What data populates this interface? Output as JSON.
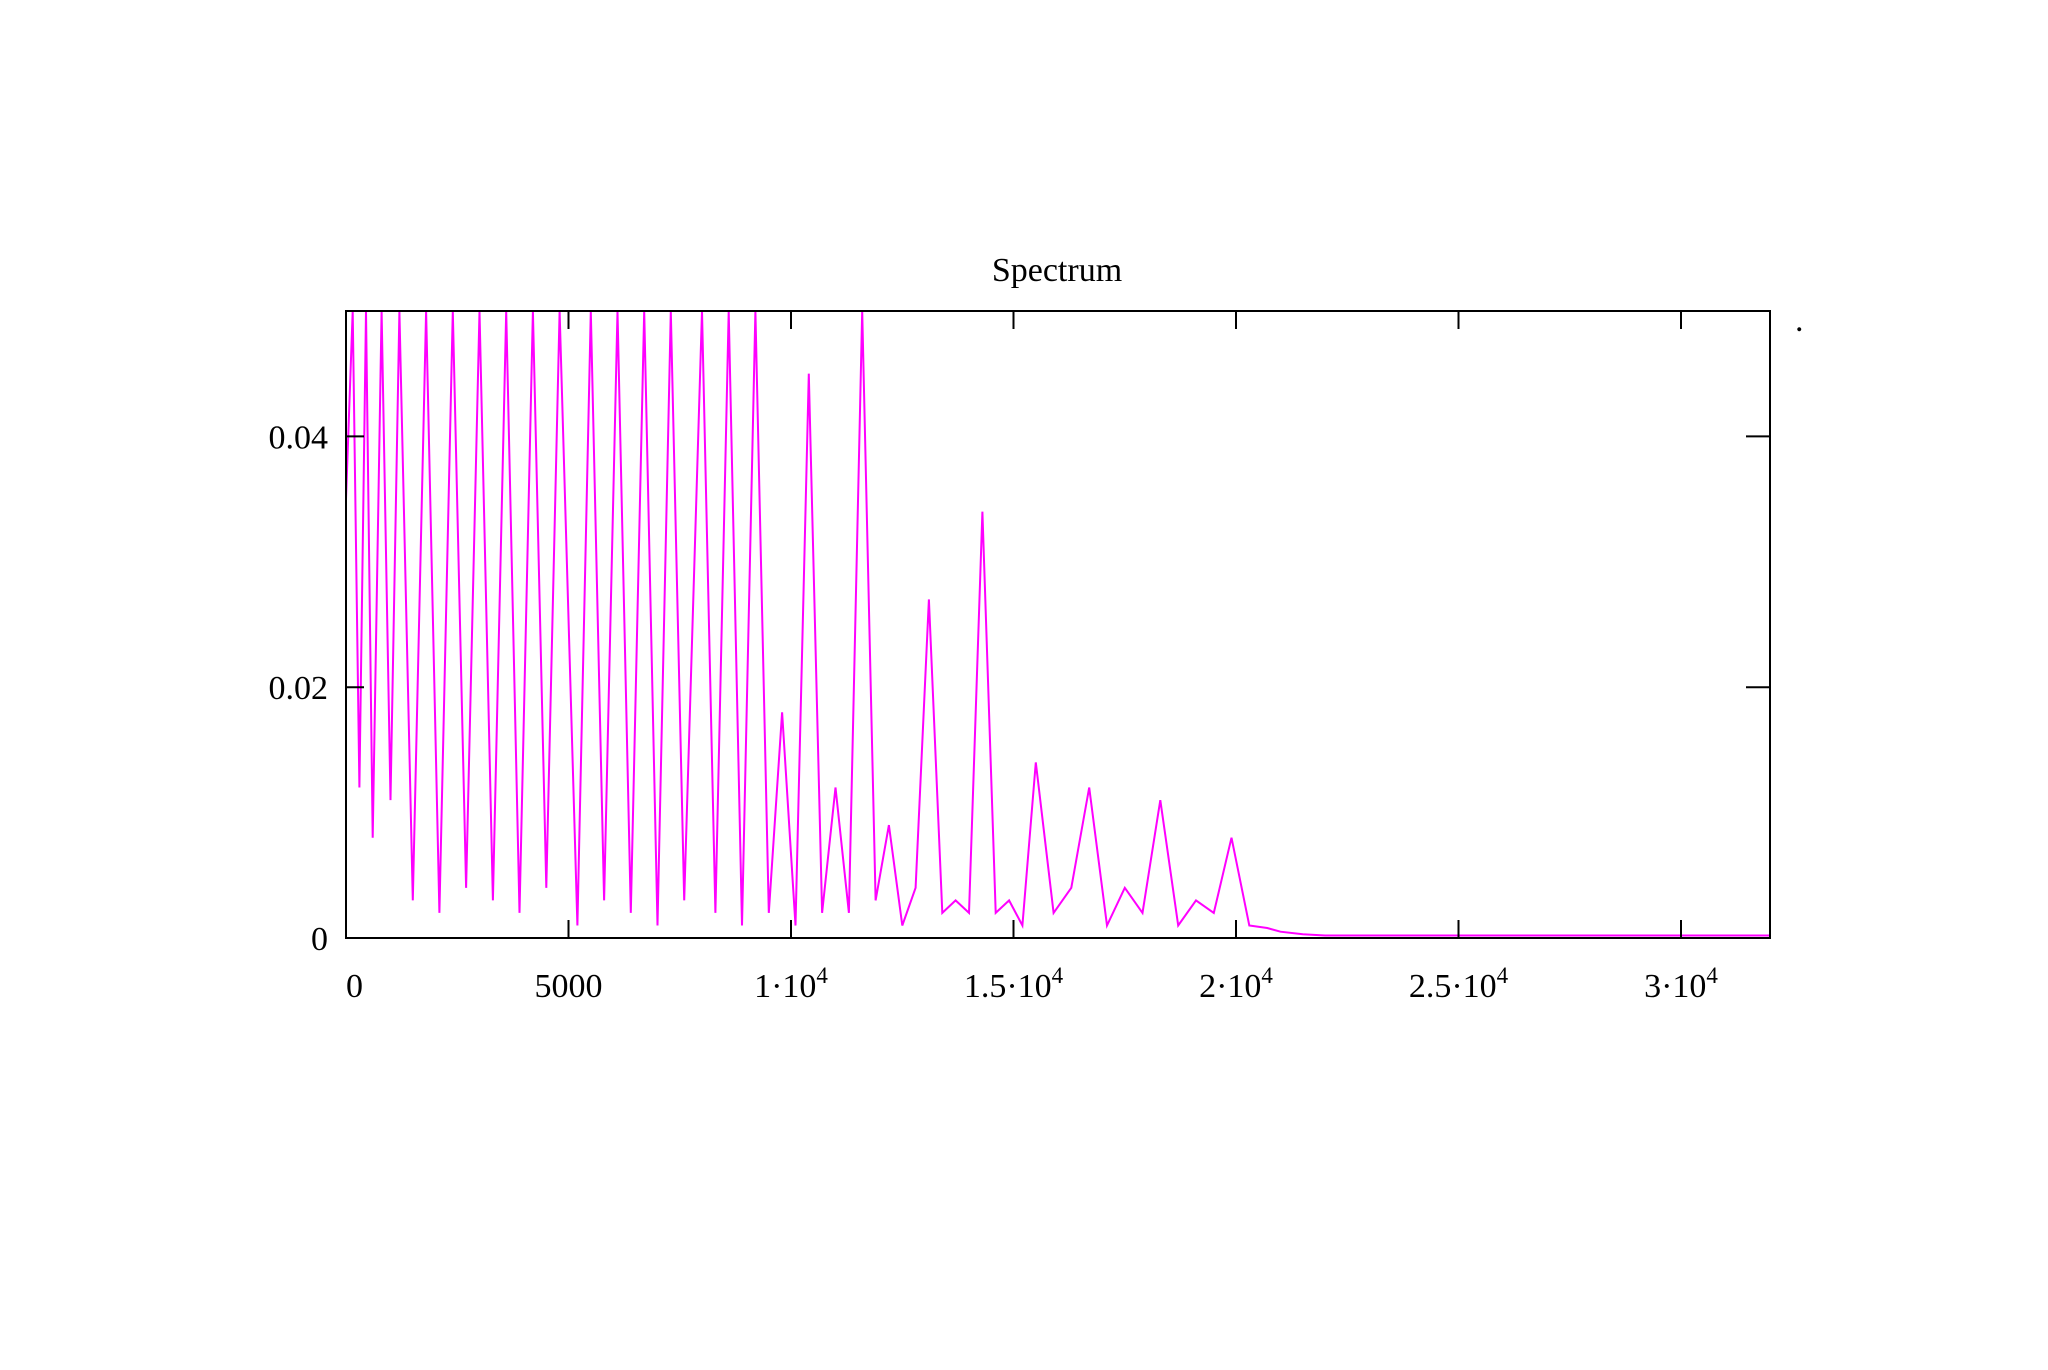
{
  "chart_data": {
    "type": "line",
    "title": "Spectrum",
    "xlabel": "",
    "ylabel": "",
    "xlim": [
      0,
      32000
    ],
    "ylim": [
      0,
      0.05
    ],
    "grid": false,
    "legend": "none",
    "x_ticks": [
      {
        "value": 0,
        "label": "0",
        "exp": ""
      },
      {
        "value": 5000,
        "label": "5000",
        "exp": ""
      },
      {
        "value": 10000,
        "label": "1·10",
        "exp": "4"
      },
      {
        "value": 15000,
        "label": "1.5·10",
        "exp": "4"
      },
      {
        "value": 20000,
        "label": "2·10",
        "exp": "4"
      },
      {
        "value": 25000,
        "label": "2.5·10",
        "exp": "4"
      },
      {
        "value": 30000,
        "label": "3·10",
        "exp": "4"
      }
    ],
    "y_ticks": [
      {
        "value": 0,
        "label": "0"
      },
      {
        "value": 0.02,
        "label": "0.02"
      },
      {
        "value": 0.04,
        "label": "0.04"
      }
    ],
    "series": [
      {
        "color": "#ff00ff",
        "x": [
          0,
          150,
          300,
          450,
          600,
          800,
          1000,
          1200,
          1500,
          1800,
          2100,
          2400,
          2700,
          3000,
          3300,
          3600,
          3900,
          4200,
          4500,
          4800,
          5200,
          5500,
          5800,
          6100,
          6400,
          6700,
          7000,
          7300,
          7600,
          8000,
          8300,
          8600,
          8900,
          9200,
          9500,
          9800,
          10100,
          10400,
          10700,
          11000,
          11300,
          11600,
          11900,
          12200,
          12500,
          12800,
          13100,
          13400,
          13700,
          14000,
          14300,
          14600,
          14900,
          15200,
          15500,
          15900,
          16300,
          16700,
          17100,
          17500,
          17900,
          18300,
          18700,
          19100,
          19500,
          19900,
          20300,
          20700,
          21000,
          21500,
          22000,
          23000,
          24000,
          25000,
          26000,
          28000,
          30000,
          32000
        ],
        "values": [
          0.035,
          0.05,
          0.012,
          0.05,
          0.008,
          0.05,
          0.011,
          0.05,
          0.003,
          0.05,
          0.002,
          0.05,
          0.004,
          0.05,
          0.003,
          0.05,
          0.002,
          0.05,
          0.004,
          0.05,
          0.001,
          0.05,
          0.003,
          0.05,
          0.002,
          0.05,
          0.001,
          0.05,
          0.003,
          0.05,
          0.002,
          0.05,
          0.001,
          0.05,
          0.002,
          0.018,
          0.001,
          0.045,
          0.002,
          0.012,
          0.002,
          0.05,
          0.003,
          0.009,
          0.001,
          0.004,
          0.027,
          0.002,
          0.003,
          0.002,
          0.034,
          0.002,
          0.003,
          0.001,
          0.014,
          0.002,
          0.004,
          0.012,
          0.001,
          0.004,
          0.002,
          0.011,
          0.001,
          0.003,
          0.002,
          0.008,
          0.001,
          0.0008,
          0.0005,
          0.0003,
          0.0002,
          0.0002,
          0.0002,
          0.0002,
          0.0002,
          0.0002,
          0.0002,
          0.0002
        ]
      }
    ]
  }
}
